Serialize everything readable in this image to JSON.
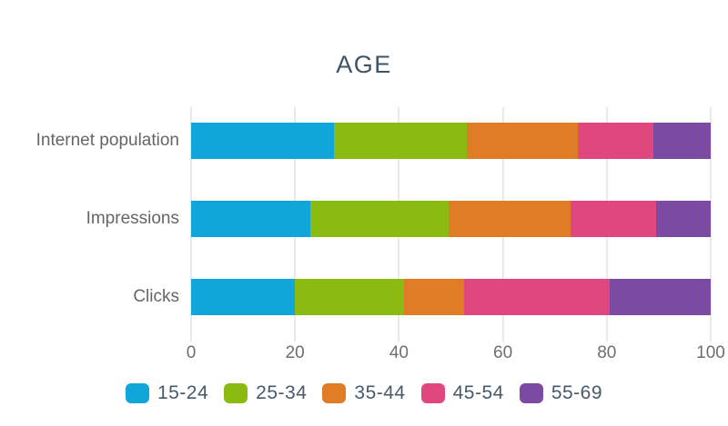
{
  "chart_data": {
    "type": "bar",
    "orientation": "horizontal",
    "stacked": true,
    "title": "AGE",
    "categories": [
      "Internet population",
      "Impressions",
      "Clicks"
    ],
    "series": [
      {
        "name": "15-24",
        "color": "#10a6d9",
        "values": [
          27.5,
          23.0,
          20.0
        ]
      },
      {
        "name": "25-34",
        "color": "#8bbb10",
        "values": [
          25.5,
          26.5,
          21.0
        ]
      },
      {
        "name": "35-44",
        "color": "#e17c26",
        "values": [
          21.5,
          23.5,
          11.5
        ]
      },
      {
        "name": "45-54",
        "color": "#e1477f",
        "values": [
          14.5,
          16.5,
          28.0
        ]
      },
      {
        "name": "55-69",
        "color": "#7b4ba3",
        "values": [
          11.0,
          10.5,
          19.5
        ]
      }
    ],
    "xlim": [
      0,
      100
    ],
    "xticks": [
      0,
      20,
      40,
      60,
      80,
      100
    ],
    "grid": true,
    "legend_position": "bottom"
  },
  "styles": {
    "title_color": "#3d5366",
    "row_label_color": "#666666",
    "tick_label_color": "#6e6e6e",
    "gridline_color": "#d4d4d4",
    "legend_text_color": "#465a6b",
    "background": "#ffffff"
  }
}
